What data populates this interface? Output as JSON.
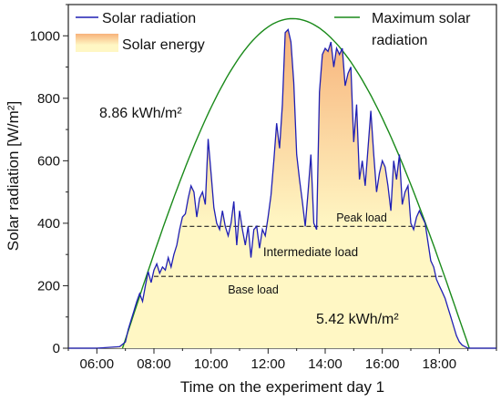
{
  "chart_data": {
    "type": "area",
    "xlabel": "Time on the experiment day 1",
    "ylabel": "Solar radiation [W/m²]",
    "xlim": [
      5.0,
      20.0
    ],
    "ylim": [
      0,
      1100
    ],
    "x_ticks": [
      {
        "value": 6,
        "label": "06:00"
      },
      {
        "value": 8,
        "label": "08:00"
      },
      {
        "value": 10,
        "label": "10:00"
      },
      {
        "value": 12,
        "label": "12:00"
      },
      {
        "value": 14,
        "label": "14:00"
      },
      {
        "value": 16,
        "label": "16:00"
      },
      {
        "value": 18,
        "label": "18:00"
      }
    ],
    "y_ticks": [
      0,
      200,
      400,
      600,
      800,
      1000
    ],
    "grid": false,
    "legend_position": "top",
    "legend": {
      "solar_radiation": "Solar radiation",
      "solar_energy": "Solar energy",
      "max_solar_line1": "Maximum solar",
      "max_solar_line2": "radiation"
    },
    "colors": {
      "solar_radiation": "#1f1fb4",
      "max_solar": "#1a8a1a",
      "fill_top": "#f7b27a",
      "fill_bottom": "#fff7c4"
    },
    "max_solar_radiation": {
      "sunrise": 6.9,
      "sunset": 19.05,
      "peak_time": 12.85,
      "peak_value": 1055
    },
    "series": [
      {
        "name": "Solar radiation",
        "x": [
          5.0,
          6.0,
          6.8,
          7.0,
          7.1,
          7.2,
          7.3,
          7.4,
          7.5,
          7.6,
          7.7,
          7.8,
          7.9,
          8.0,
          8.1,
          8.2,
          8.3,
          8.4,
          8.5,
          8.6,
          8.7,
          8.8,
          8.9,
          9.0,
          9.1,
          9.2,
          9.3,
          9.4,
          9.5,
          9.6,
          9.7,
          9.8,
          9.9,
          10.0,
          10.1,
          10.2,
          10.3,
          10.4,
          10.5,
          10.6,
          10.7,
          10.8,
          10.9,
          11.0,
          11.1,
          11.2,
          11.3,
          11.4,
          11.5,
          11.6,
          11.7,
          11.8,
          11.9,
          12.0,
          12.1,
          12.2,
          12.3,
          12.4,
          12.5,
          12.6,
          12.7,
          12.8,
          12.9,
          13.0,
          13.1,
          13.2,
          13.3,
          13.4,
          13.5,
          13.6,
          13.7,
          13.8,
          13.9,
          14.0,
          14.1,
          14.2,
          14.3,
          14.4,
          14.5,
          14.6,
          14.7,
          14.8,
          14.9,
          15.0,
          15.1,
          15.2,
          15.3,
          15.4,
          15.5,
          15.6,
          15.7,
          15.8,
          15.9,
          16.0,
          16.1,
          16.2,
          16.3,
          16.4,
          16.5,
          16.6,
          16.7,
          16.8,
          16.9,
          17.0,
          17.1,
          17.2,
          17.3,
          17.4,
          17.5,
          17.6,
          17.7,
          17.8,
          17.9,
          18.0,
          18.1,
          18.2,
          18.3,
          18.4,
          18.5,
          18.6,
          18.7,
          18.8,
          18.9,
          19.0,
          20.0
        ],
        "y": [
          0,
          0,
          5,
          20,
          60,
          90,
          120,
          150,
          175,
          150,
          200,
          245,
          210,
          250,
          270,
          240,
          260,
          250,
          290,
          260,
          300,
          330,
          380,
          420,
          430,
          480,
          520,
          500,
          420,
          480,
          500,
          460,
          670,
          560,
          450,
          400,
          380,
          440,
          390,
          360,
          400,
          470,
          330,
          440,
          380,
          330,
          390,
          290,
          380,
          390,
          320,
          380,
          360,
          420,
          490,
          600,
          720,
          640,
          780,
          1010,
          1020,
          980,
          850,
          620,
          540,
          470,
          390,
          500,
          620,
          400,
          380,
          820,
          940,
          960,
          950,
          980,
          900,
          960,
          940,
          960,
          840,
          880,
          900,
          660,
          780,
          540,
          600,
          520,
          640,
          760,
          620,
          500,
          560,
          600,
          580,
          520,
          440,
          600,
          540,
          620,
          460,
          500,
          520,
          400,
          380,
          420,
          440,
          420,
          400,
          340,
          280,
          260,
          220,
          200,
          180,
          160,
          130,
          100,
          70,
          40,
          20,
          10,
          5,
          0,
          0
        ]
      }
    ],
    "load_lines": [
      {
        "label": "Peak load",
        "value": 390,
        "x_start": 9.0,
        "x_end": 17.5
      },
      {
        "label": "Base load",
        "value": 230,
        "x_start": 8.0,
        "x_end": 18.1
      }
    ],
    "annotations": {
      "intermediate_load": "Intermediate load",
      "energy_max": "8.86 kWh/m²",
      "energy_measured": "5.42 kWh/m²"
    }
  }
}
